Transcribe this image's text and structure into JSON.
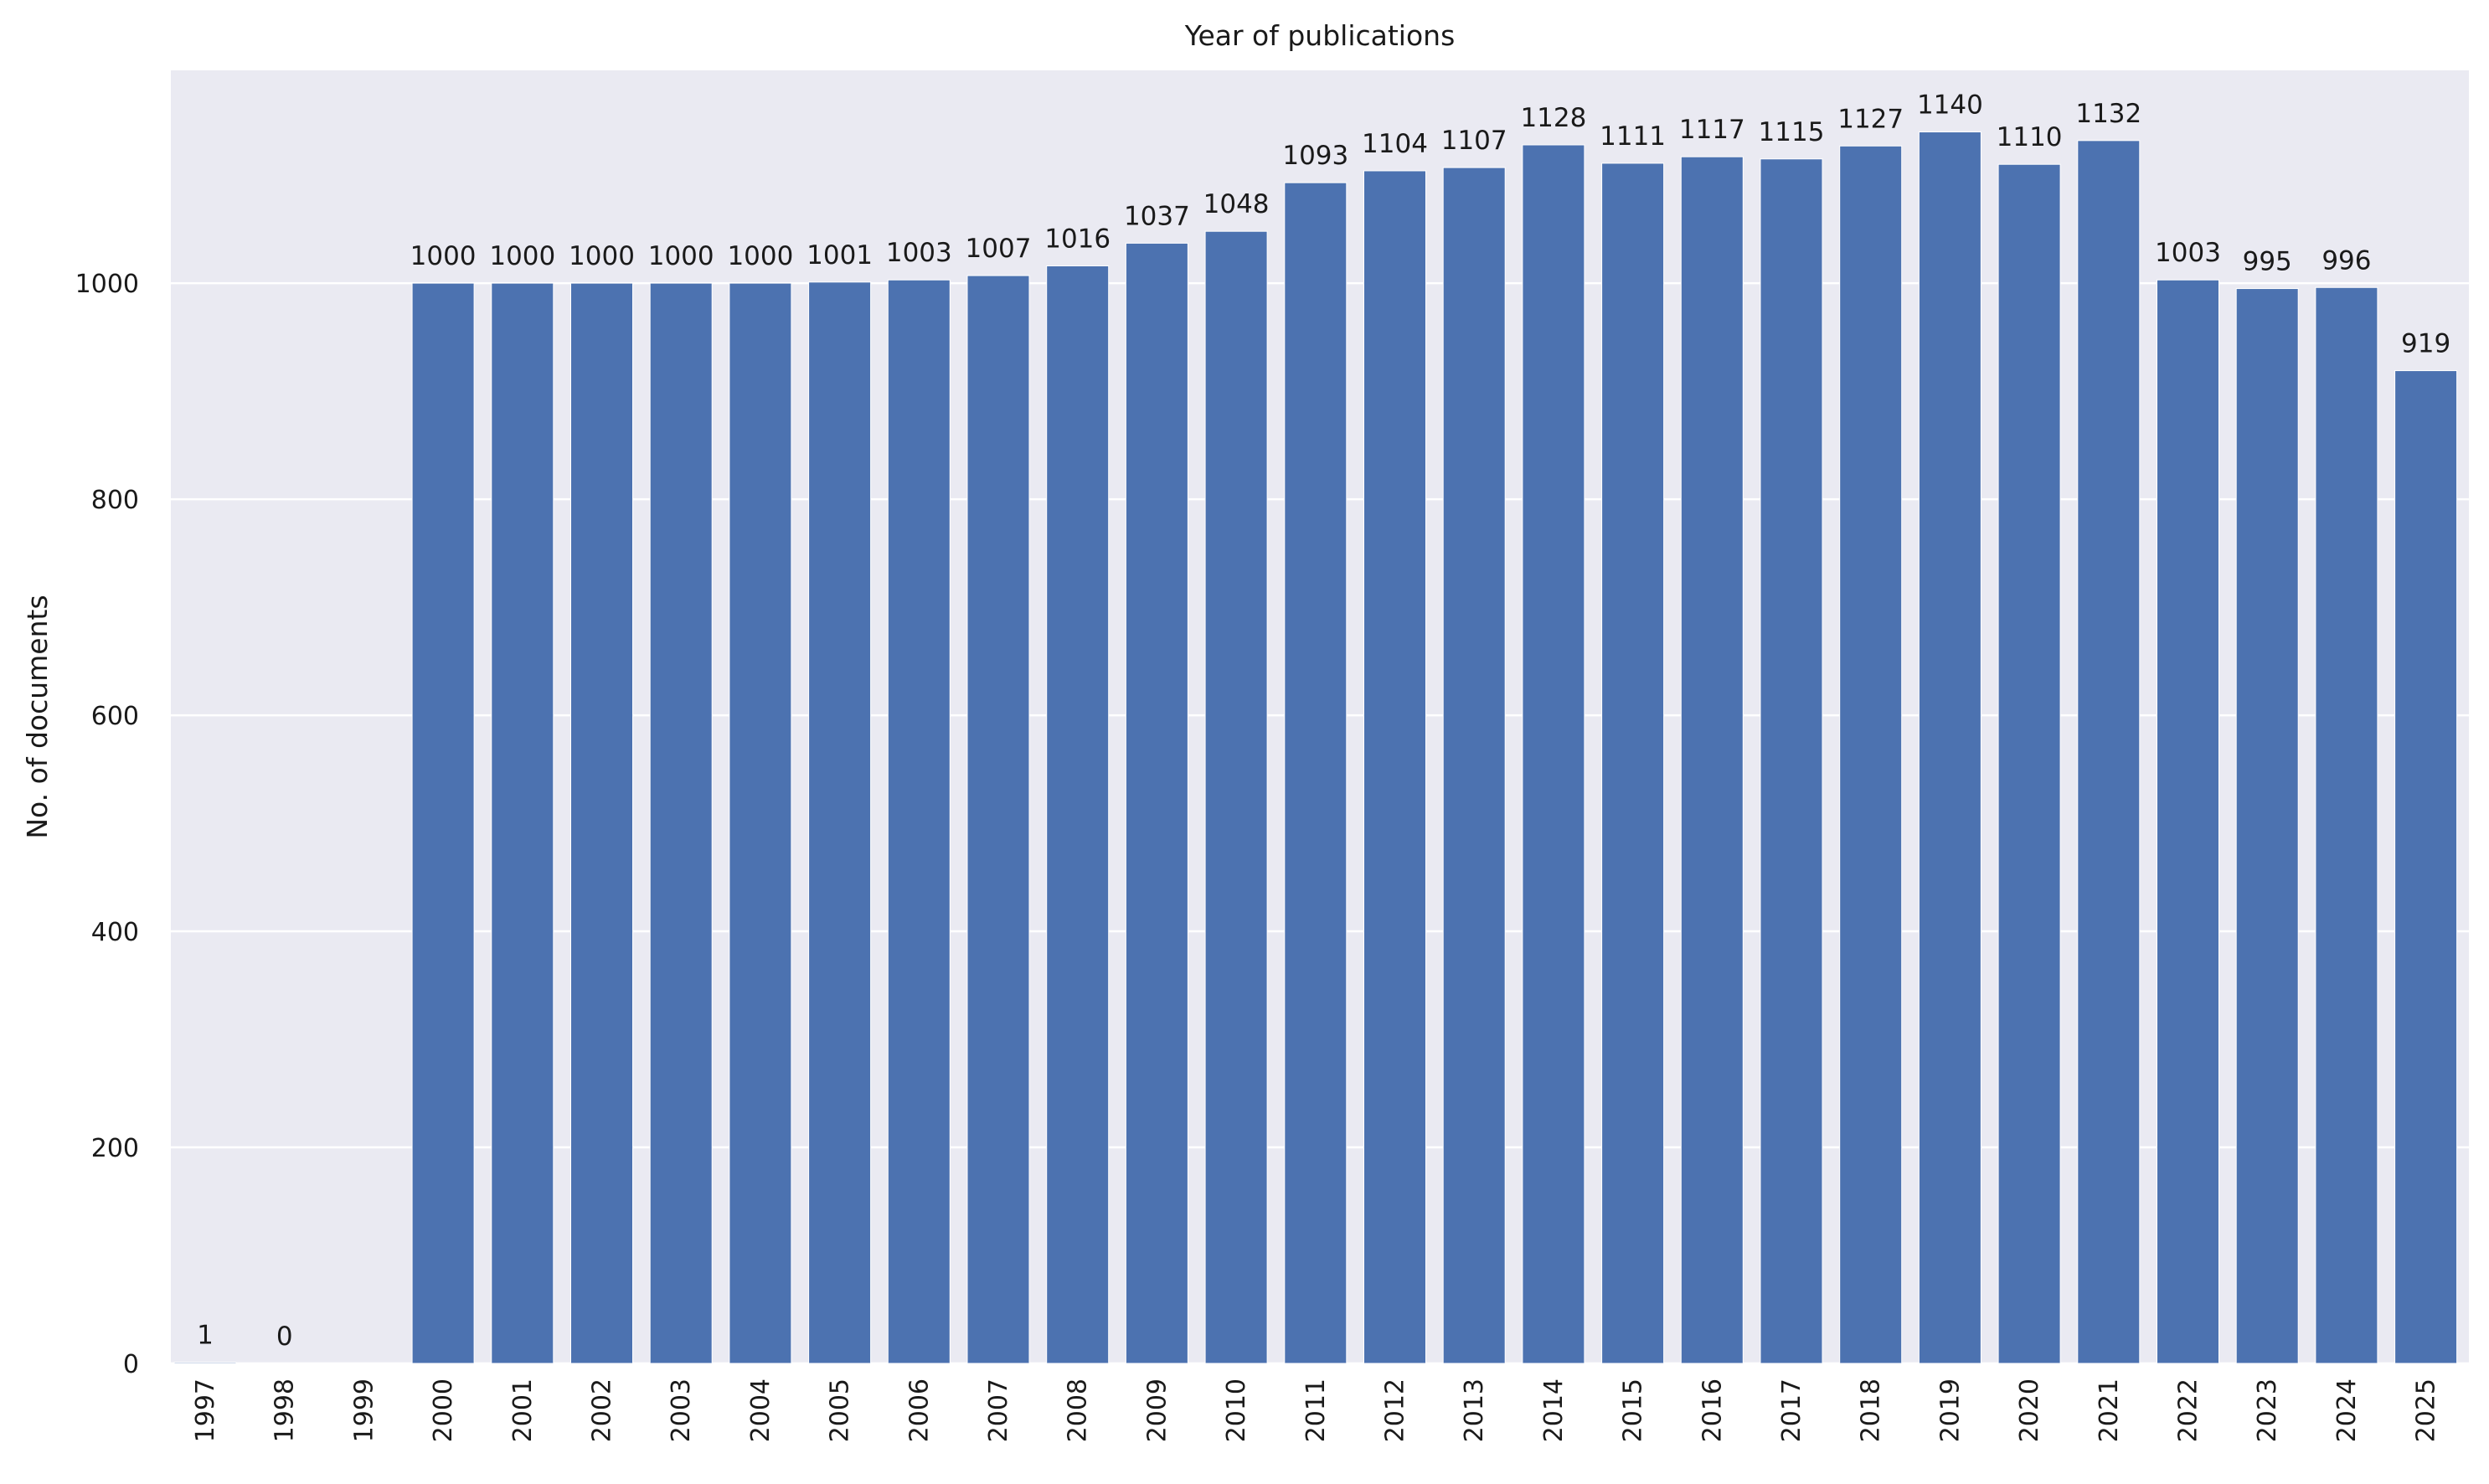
{
  "chart_data": {
    "type": "bar",
    "title": "Year of publications",
    "xlabel": "",
    "ylabel": "No. of documents",
    "categories": [
      "1997",
      "1998",
      "1999",
      "2000",
      "2001",
      "2002",
      "2003",
      "2004",
      "2005",
      "2006",
      "2007",
      "2008",
      "2009",
      "2010",
      "2011",
      "2012",
      "2013",
      "2014",
      "2015",
      "2016",
      "2017",
      "2018",
      "2019",
      "2020",
      "2021",
      "2022",
      "2023",
      "2024",
      "2025"
    ],
    "values": [
      1,
      0,
      null,
      1000,
      1000,
      1000,
      1000,
      1000,
      1001,
      1003,
      1007,
      1016,
      1037,
      1048,
      1093,
      1104,
      1107,
      1128,
      1111,
      1117,
      1115,
      1127,
      1140,
      1110,
      1132,
      1003,
      995,
      996,
      919
    ],
    "data_labels": [
      "1",
      "0",
      "",
      "1000",
      "1000",
      "1000",
      "1000",
      "1000",
      "1001",
      "1003",
      "1007",
      "1016",
      "1037",
      "1048",
      "1093",
      "1104",
      "1107",
      "1128",
      "1111",
      "1117",
      "1115",
      "1127",
      "1140",
      "1110",
      "1132",
      "1003",
      "995",
      "996",
      "919"
    ],
    "ylim": [
      0,
      1197
    ],
    "yticks": [
      0,
      200,
      400,
      600,
      800,
      1000
    ],
    "grid": "y",
    "legend": "none",
    "colors": {
      "bar": "#4c72b0",
      "plot_background": "#eaeaf2",
      "grid": "#ffffff",
      "text": "#1a1a1a"
    }
  }
}
